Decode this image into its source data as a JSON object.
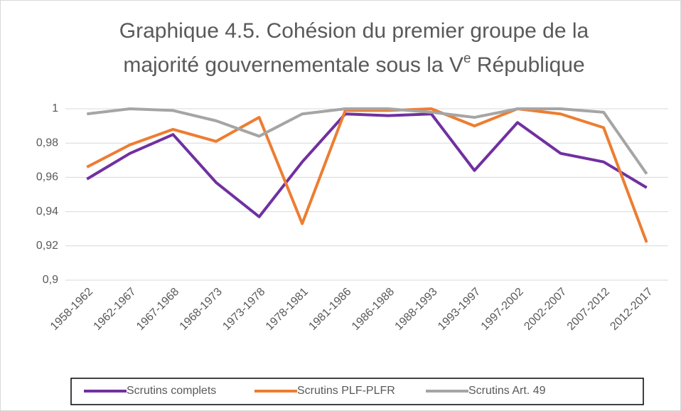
{
  "chart_data": {
    "type": "line",
    "title": {
      "line1": "Graphique 4.5. Cohésion du premier groupe de la",
      "line2a": "majorité gouvernementale sous la V",
      "sup": "e",
      "line2b": " République"
    },
    "categories": [
      "1958-1962",
      "1962-1967",
      "1967-1968",
      "1968-1973",
      "1973-1978",
      "1978-1981",
      "1981-1986",
      "1986-1988",
      "1988-1993",
      "1993-1997",
      "1997-2002",
      "2002-2007",
      "2007-2012",
      "2012-2017"
    ],
    "series": [
      {
        "name": "Scrutins complets",
        "color": "#7030a0",
        "values": [
          0.959,
          0.974,
          0.985,
          0.957,
          0.937,
          0.969,
          0.997,
          0.996,
          0.997,
          0.964,
          0.992,
          0.974,
          0.969,
          0.954
        ]
      },
      {
        "name": "Scrutins PLF-PLFR",
        "color": "#ed7d31",
        "values": [
          0.966,
          0.979,
          0.988,
          0.981,
          0.995,
          0.933,
          0.999,
          0.999,
          1.0,
          0.99,
          1.0,
          0.997,
          0.989,
          0.922
        ]
      },
      {
        "name": "Scrutins Art. 49",
        "color": "#a5a5a5",
        "values": [
          0.997,
          1.0,
          0.999,
          0.993,
          0.984,
          0.997,
          1.0,
          1.0,
          0.998,
          0.995,
          1.0,
          1.0,
          0.998,
          0.962
        ]
      }
    ],
    "ylim": [
      0.9,
      1
    ],
    "yticks": [
      {
        "value": 0.9,
        "label": "0,9"
      },
      {
        "value": 0.92,
        "label": "0,92"
      },
      {
        "value": 0.94,
        "label": "0,94"
      },
      {
        "value": 0.96,
        "label": "0,96"
      },
      {
        "value": 0.98,
        "label": "0,98"
      },
      1
    ],
    "grid": true,
    "legend": "bottom"
  }
}
